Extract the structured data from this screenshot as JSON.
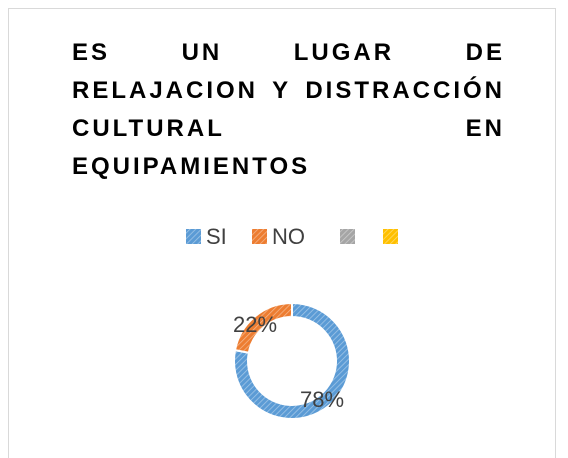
{
  "chart_data": {
    "type": "doughnut",
    "title": "ES UN LUGAR DE RELAJACION Y DISTRACCIÓN CULTURAL EN EQUIPAMIENTOS",
    "categories": [
      "SI",
      "NO",
      null,
      null
    ],
    "values": [
      78,
      22,
      0,
      0
    ],
    "value_labels": [
      "78%",
      "22%",
      null,
      null
    ],
    "colors": [
      "#5b9bd5",
      "#ed7d31",
      "#a5a5a5",
      "#ffc000"
    ],
    "legend": "top"
  }
}
